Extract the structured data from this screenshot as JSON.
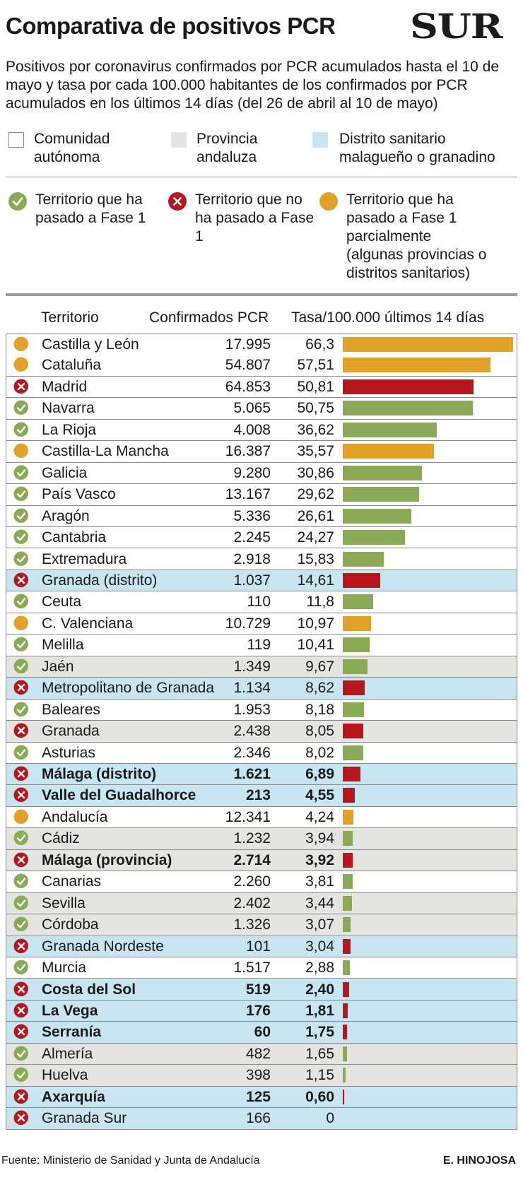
{
  "title": "Comparativa de positivos PCR",
  "logo": "SUR",
  "subtitle": "Positivos por coronavirus confirmados por PCR acumulados hasta el 10 de mayo y tasa por cada 100.000 habitantes de los confirmados por PCR acumulados en los últimos 14 días (del 26 de abril al 10 de mayo)",
  "legend_types": [
    {
      "label": "Comunidad autónoma",
      "color": "#ffffff"
    },
    {
      "label": "Provincia andaluza",
      "color": "#e4e4e1"
    },
    {
      "label": "Distrito sanitario malagueño o granadino",
      "color": "#c8e6f2"
    }
  ],
  "legend_status": [
    {
      "label": "Territorio que ha pasado a Fase 1",
      "icon": "check-icon",
      "color": "#8aaa55"
    },
    {
      "label": "Territorio que no ha pasado a Fase 1",
      "icon": "cross-icon",
      "color": "#b8161d"
    },
    {
      "label": "Territorio que ha pasado a Fase 1 parcialmente (algunas provincias o distritos sanitarios)",
      "icon": "partial-icon",
      "color": "#e2a22a"
    }
  ],
  "columns": {
    "territory": "Territorio",
    "confirmed": "Confirmados PCR",
    "rate": "Tasa/100.000 últimos 14 días"
  },
  "colors": {
    "green": "#8aaa55",
    "red": "#b8161d",
    "orange": "#e2a22a",
    "ca_bg": "#ffffff",
    "province_bg": "#e4e4e1",
    "district_bg": "#c8e6f2"
  },
  "chart_data": {
    "type": "bar",
    "categories": [
      "Castilla y León",
      "Cataluña",
      "Madrid",
      "Navarra",
      "La Rioja",
      "Castilla-La Mancha",
      "Galicia",
      "País Vasco",
      "Aragón",
      "Cantabria",
      "Extremadura",
      "Granada (distrito)",
      "Ceuta",
      "C. Valenciana",
      "Melilla",
      "Jaén",
      "Metropolitano de Granada",
      "Baleares",
      "Granada",
      "Asturias",
      "Málaga (distrito)",
      "Valle del Guadalhorce",
      "Andalucía",
      "Cádiz",
      "Málaga (provincia)",
      "Canarias",
      "Sevilla",
      "Córdoba",
      "Granada Nordeste",
      "Murcia",
      "Costa del Sol",
      "La Vega",
      "Serranía",
      "Almería",
      "Huelva",
      "Axarquía",
      "Granada Sur"
    ],
    "confirmed_labels": [
      "17.995",
      "54.807",
      "64.853",
      "5.065",
      "4.008",
      "16.387",
      "9.280",
      "13.167",
      "5.336",
      "2.245",
      "2.918",
      "1.037",
      "110",
      "10.729",
      "119",
      "1.349",
      "1.134",
      "1.953",
      "2.438",
      "2.346",
      "1.621",
      "213",
      "12.341",
      "1.232",
      "2.714",
      "2.260",
      "2.402",
      "1.326",
      "101",
      "1.517",
      "519",
      "176",
      "60",
      "482",
      "398",
      "125",
      "166"
    ],
    "rate_labels": [
      "66,3",
      "57,51",
      "50,81",
      "50,75",
      "36,62",
      "35,57",
      "30,86",
      "29,62",
      "26,61",
      "24,27",
      "15,83",
      "14,61",
      "11,8",
      "10,97",
      "10,41",
      "9,67",
      "8,62",
      "8,18",
      "8,05",
      "8,02",
      "6,89",
      "4,55",
      "4,24",
      "3,94",
      "3,92",
      "3,81",
      "3,44",
      "3,07",
      "3,04",
      "2,88",
      "2,40",
      "1,81",
      "1,75",
      "1,65",
      "1,15",
      "0,60",
      "0"
    ],
    "values": [
      66.3,
      57.51,
      50.81,
      50.75,
      36.62,
      35.57,
      30.86,
      29.62,
      26.61,
      24.27,
      15.83,
      14.61,
      11.8,
      10.97,
      10.41,
      9.67,
      8.62,
      8.18,
      8.05,
      8.02,
      6.89,
      4.55,
      4.24,
      3.94,
      3.92,
      3.81,
      3.44,
      3.07,
      3.04,
      2.88,
      2.4,
      1.81,
      1.75,
      1.65,
      1.15,
      0.6,
      0
    ],
    "status": [
      "partial",
      "partial",
      "no",
      "yes",
      "yes",
      "partial",
      "yes",
      "yes",
      "yes",
      "yes",
      "yes",
      "no",
      "yes",
      "partial",
      "yes",
      "yes",
      "no",
      "yes",
      "no",
      "yes",
      "no",
      "no",
      "partial",
      "yes",
      "no",
      "yes",
      "yes",
      "yes",
      "no",
      "yes",
      "no",
      "no",
      "no",
      "yes",
      "yes",
      "no",
      "no"
    ],
    "kind": [
      "ca",
      "ca",
      "ca",
      "ca",
      "ca",
      "ca",
      "ca",
      "ca",
      "ca",
      "ca",
      "ca",
      "district",
      "ca",
      "ca",
      "ca",
      "province",
      "district",
      "ca",
      "province",
      "ca",
      "district",
      "district",
      "ca",
      "province",
      "province",
      "ca",
      "province",
      "province",
      "district",
      "ca",
      "district",
      "district",
      "district",
      "province",
      "province",
      "district",
      "district"
    ],
    "bold": [
      false,
      false,
      false,
      false,
      false,
      false,
      false,
      false,
      false,
      false,
      false,
      false,
      false,
      false,
      false,
      false,
      false,
      false,
      false,
      false,
      true,
      true,
      false,
      false,
      true,
      false,
      false,
      false,
      false,
      false,
      true,
      true,
      true,
      false,
      false,
      true,
      false
    ],
    "xlim": [
      0,
      66.3
    ]
  },
  "source": "Fuente: Ministerio de Sanidad y Junta de Andalucía",
  "author": "E. HINOJOSA"
}
